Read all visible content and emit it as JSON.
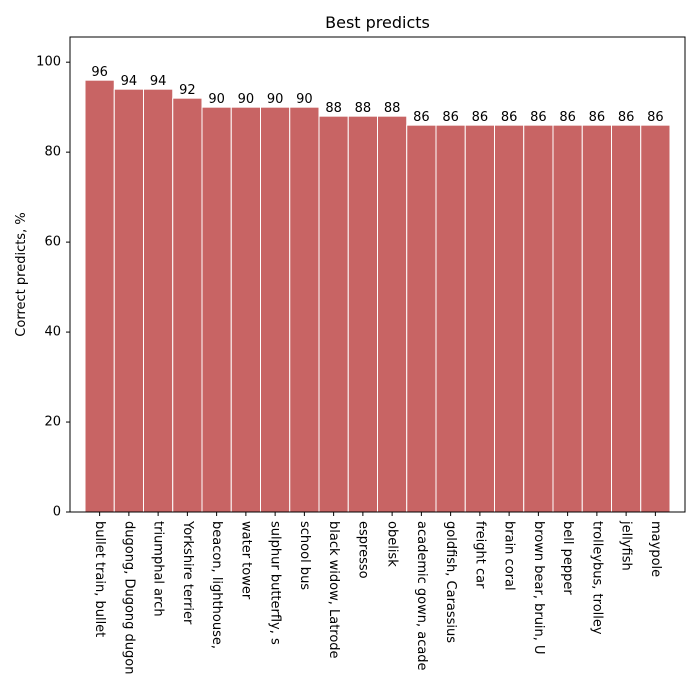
{
  "chart_data": {
    "type": "bar",
    "title": "Best predicts",
    "xlabel": "",
    "ylabel": "Correct predicts, %",
    "ylim": [
      0,
      105.6
    ],
    "yticks": [
      0,
      20,
      40,
      60,
      80,
      100
    ],
    "bar_color": "#c86464",
    "categories": [
      "bullet train, bullet",
      "dugong, Dugong dugon",
      "triumphal arch",
      "Yorkshire terrier",
      "beacon, lighthouse,",
      "water tower",
      "sulphur butterfly, s",
      "school bus",
      "black widow, Latrode",
      "espresso",
      "obelisk",
      "academic gown, acade",
      "goldfish, Carassius",
      "freight car",
      "brain coral",
      "brown bear, bruin, U",
      "bell pepper",
      "trolleybus, trolley",
      "jellyfish",
      "maypole"
    ],
    "values": [
      96,
      94,
      94,
      92,
      90,
      90,
      90,
      90,
      88,
      88,
      88,
      86,
      86,
      86,
      86,
      86,
      86,
      86,
      86,
      86
    ]
  }
}
